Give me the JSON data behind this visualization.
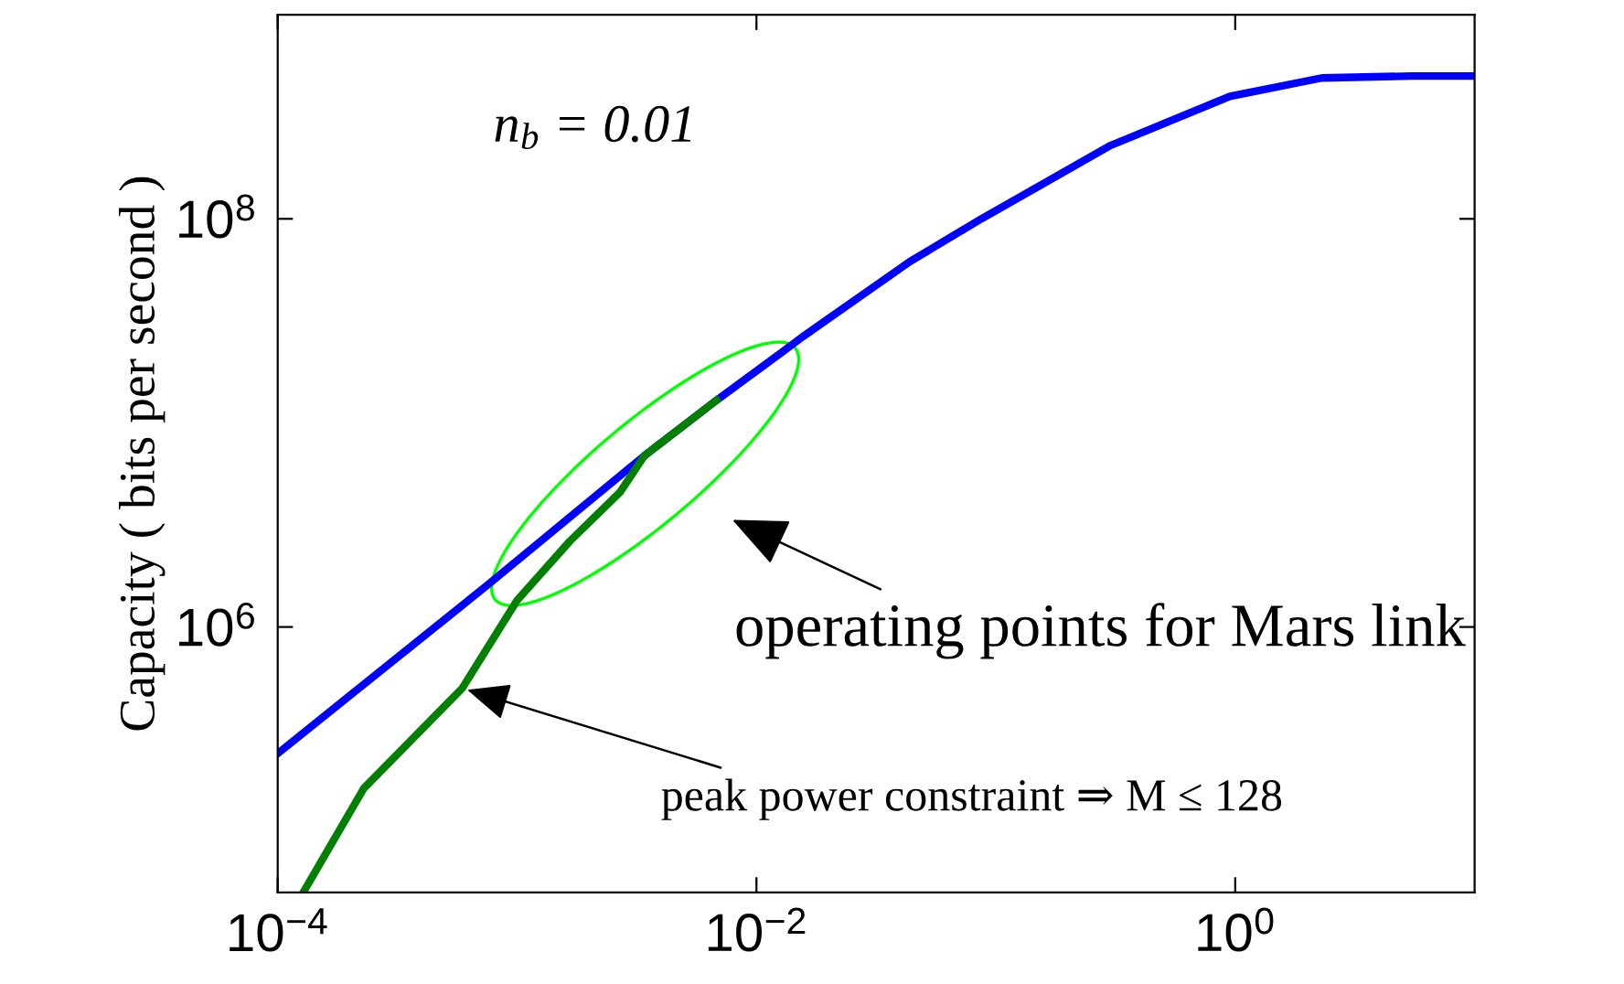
{
  "chart_data": {
    "type": "line",
    "ylabel": "Capacity ( bits per second )",
    "log": "xy",
    "grid": false,
    "marker": "none",
    "line_style": "solid",
    "xlim": [
      0.0001,
      10
    ],
    "ylim": [
      50000,
      1000000000
    ],
    "xticks": [
      {
        "value": 0.0001,
        "label": "10$^{−4}$"
      },
      {
        "value": 0.01,
        "label": "10$^{−2}$"
      },
      {
        "value": 1,
        "label": "10$^{0}$"
      }
    ],
    "yticks": [
      {
        "value": 1000000,
        "label": "10$^{6}$"
      },
      {
        "value": 100000000,
        "label": "10$^{8}$"
      }
    ],
    "series": [
      {
        "color": "#0000ff",
        "x": [
          0.0001,
          0.00074,
          0.0034,
          0.0068,
          0.0129,
          0.0155,
          0.0437,
          0.087,
          0.302,
          0.95,
          2.3,
          5.5,
          10
        ],
        "values": [
          240000,
          1580000,
          6900000,
          12900000,
          22400000,
          26300000,
          61700000,
          100000000,
          229000000,
          398000000,
          490000000,
          501000000,
          501000000
        ]
      },
      {
        "color": "#007f00",
        "x": [
          0.000129,
          0.000229,
          0.00059,
          0.001,
          0.00166,
          0.00269,
          0.0034,
          0.0068
        ],
        "values": [
          51000,
          162000,
          501000,
          1350000,
          2630000,
          4570000,
          6900000,
          12900000
        ]
      }
    ],
    "annotations": [
      "n$_{b}$ = 0.01",
      "operating points for Mars link",
      {
        "text": "peak power constraint ⇒ M ≤ 128",
        "x": 0.00059,
        "y": 501000
      }
    ]
  }
}
